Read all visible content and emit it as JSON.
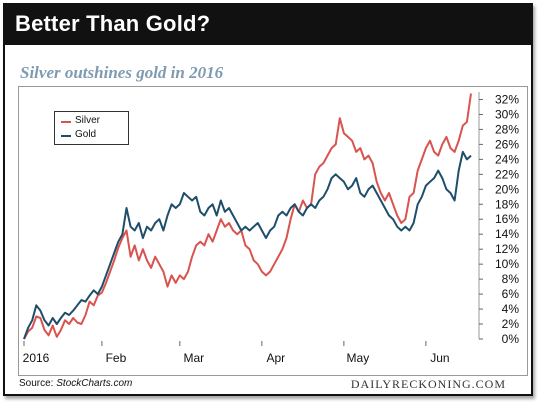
{
  "header": {
    "title": "Better Than Gold?"
  },
  "subtitle": "Silver outshines gold in 2016",
  "footer": {
    "source_prefix": "Source: ",
    "source_name": "StockCharts.com",
    "brand": "DAILYRECKONING.COM"
  },
  "colors": {
    "silver": "#d9534f",
    "gold": "#1f4e6b",
    "header_bg": "#111111",
    "subtitle": "#7f9bb0"
  },
  "chart_data": {
    "type": "line",
    "title": "Better Than Gold?",
    "subtitle": "Silver outshines gold in 2016",
    "xlabel": "",
    "ylabel": "",
    "ylim": [
      0,
      33
    ],
    "y_axis_position": "right",
    "y_ticks": [
      "0%",
      "2%",
      "4%",
      "6%",
      "8%",
      "10%",
      "12%",
      "14%",
      "16%",
      "18%",
      "20%",
      "22%",
      "24%",
      "26%",
      "28%",
      "30%",
      "32%"
    ],
    "x_ticks": [
      "2016",
      "Feb",
      "Mar",
      "Apr",
      "May",
      "Jun"
    ],
    "x_tick_index": [
      0,
      19,
      38,
      58,
      78,
      98
    ],
    "legend_position": "top-left",
    "grid": false,
    "series": [
      {
        "name": "Silver",
        "color": "#d9534f",
        "values": [
          0.0,
          1.0,
          1.5,
          3.0,
          2.8,
          1.2,
          0.5,
          1.8,
          0.3,
          1.2,
          2.5,
          2.0,
          2.8,
          2.2,
          2.0,
          3.2,
          5.0,
          4.5,
          5.8,
          6.2,
          7.5,
          9.0,
          10.5,
          12.2,
          13.5,
          14.5,
          11.0,
          12.5,
          10.5,
          12.0,
          10.5,
          9.5,
          11.0,
          10.0,
          9.0,
          7.0,
          8.5,
          7.5,
          8.5,
          8.0,
          9.0,
          11.0,
          12.5,
          13.0,
          12.5,
          14.0,
          13.0,
          14.5,
          16.0,
          15.0,
          15.5,
          14.5,
          14.0,
          14.5,
          12.5,
          12.0,
          10.5,
          10.0,
          9.0,
          8.5,
          9.0,
          10.0,
          11.0,
          12.0,
          13.5,
          16.0,
          18.0,
          17.0,
          18.5,
          17.5,
          18.0,
          22.0,
          23.0,
          23.5,
          24.5,
          25.5,
          26.0,
          29.5,
          27.5,
          27.0,
          26.5,
          25.0,
          25.5,
          24.0,
          24.5,
          23.5,
          21.0,
          19.5,
          18.5,
          19.5,
          18.0,
          16.5,
          15.5,
          16.0,
          19.0,
          19.5,
          22.5,
          24.0,
          25.5,
          26.5,
          25.0,
          24.5,
          26.0,
          27.0,
          25.5,
          25.0,
          26.5,
          28.5,
          29.0,
          32.8
        ]
      },
      {
        "name": "Gold",
        "color": "#1f4e6b",
        "values": [
          0.0,
          1.5,
          2.5,
          4.5,
          3.8,
          2.5,
          1.8,
          2.8,
          2.0,
          2.8,
          3.5,
          3.2,
          3.8,
          4.5,
          5.2,
          5.0,
          5.8,
          6.5,
          6.0,
          7.0,
          8.5,
          10.0,
          11.5,
          13.0,
          14.0,
          17.5,
          15.0,
          14.5,
          15.5,
          13.5,
          15.0,
          14.5,
          15.5,
          16.0,
          14.5,
          16.5,
          18.0,
          17.5,
          18.0,
          19.5,
          19.0,
          18.5,
          19.0,
          17.0,
          16.5,
          17.5,
          18.0,
          16.5,
          18.5,
          17.0,
          17.5,
          16.5,
          15.5,
          14.5,
          15.0,
          14.5,
          15.0,
          15.5,
          14.5,
          13.5,
          14.5,
          15.0,
          16.5,
          17.0,
          16.5,
          17.5,
          18.0,
          17.0,
          16.5,
          17.5,
          18.0,
          17.5,
          18.5,
          19.0,
          20.0,
          21.5,
          22.0,
          21.5,
          21.0,
          20.0,
          20.5,
          21.5,
          19.5,
          19.0,
          20.0,
          20.5,
          19.5,
          18.5,
          17.5,
          16.5,
          16.0,
          15.0,
          14.5,
          15.0,
          14.5,
          15.5,
          18.0,
          19.0,
          20.5,
          21.0,
          21.5,
          22.5,
          21.5,
          20.0,
          19.5,
          18.5,
          22.5,
          25.0,
          24.0,
          24.5
        ]
      }
    ]
  }
}
